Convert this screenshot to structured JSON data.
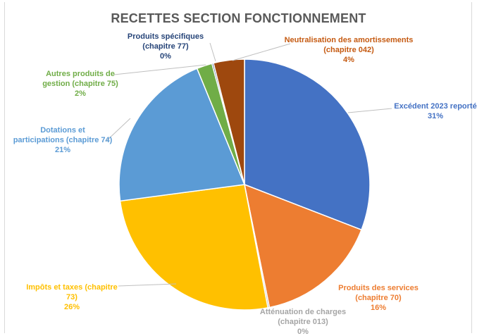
{
  "chart_data": {
    "type": "pie",
    "title": "RECETTES SECTION FONCTIONNEMENT",
    "slices": [
      {
        "label": "Excédent 2023 reporté",
        "percent_label": "31%",
        "value": 31,
        "color": "#4472c4"
      },
      {
        "label": "Produits des services (chapitre 70)",
        "percent_label": "16%",
        "value": 16,
        "color": "#ed7d31"
      },
      {
        "label": "Atténuation de charges (chapitre 013)",
        "percent_label": "0%",
        "value": 0.2,
        "color": "#a5a5a5"
      },
      {
        "label": "Impôts et taxes (chapitre 73)",
        "percent_label": "26%",
        "value": 26,
        "color": "#ffc000"
      },
      {
        "label": "Dotations et participations (chapitre 74)",
        "percent_label": "21%",
        "value": 21,
        "color": "#5b9bd5"
      },
      {
        "label": "Autres produits de gestion (chapitre 75)",
        "percent_label": "2%",
        "value": 2,
        "color": "#70ad47"
      },
      {
        "label": "Produits spécifiques (chapitre 77)",
        "percent_label": "0%",
        "value": 0.2,
        "color": "#264478"
      },
      {
        "label": "Neutralisation des amortissements (chapitre 042)",
        "percent_label": "4%",
        "value": 4,
        "color": "#9e480e"
      }
    ],
    "legend": "none",
    "data_labels": "outside-with-leader-lines"
  }
}
